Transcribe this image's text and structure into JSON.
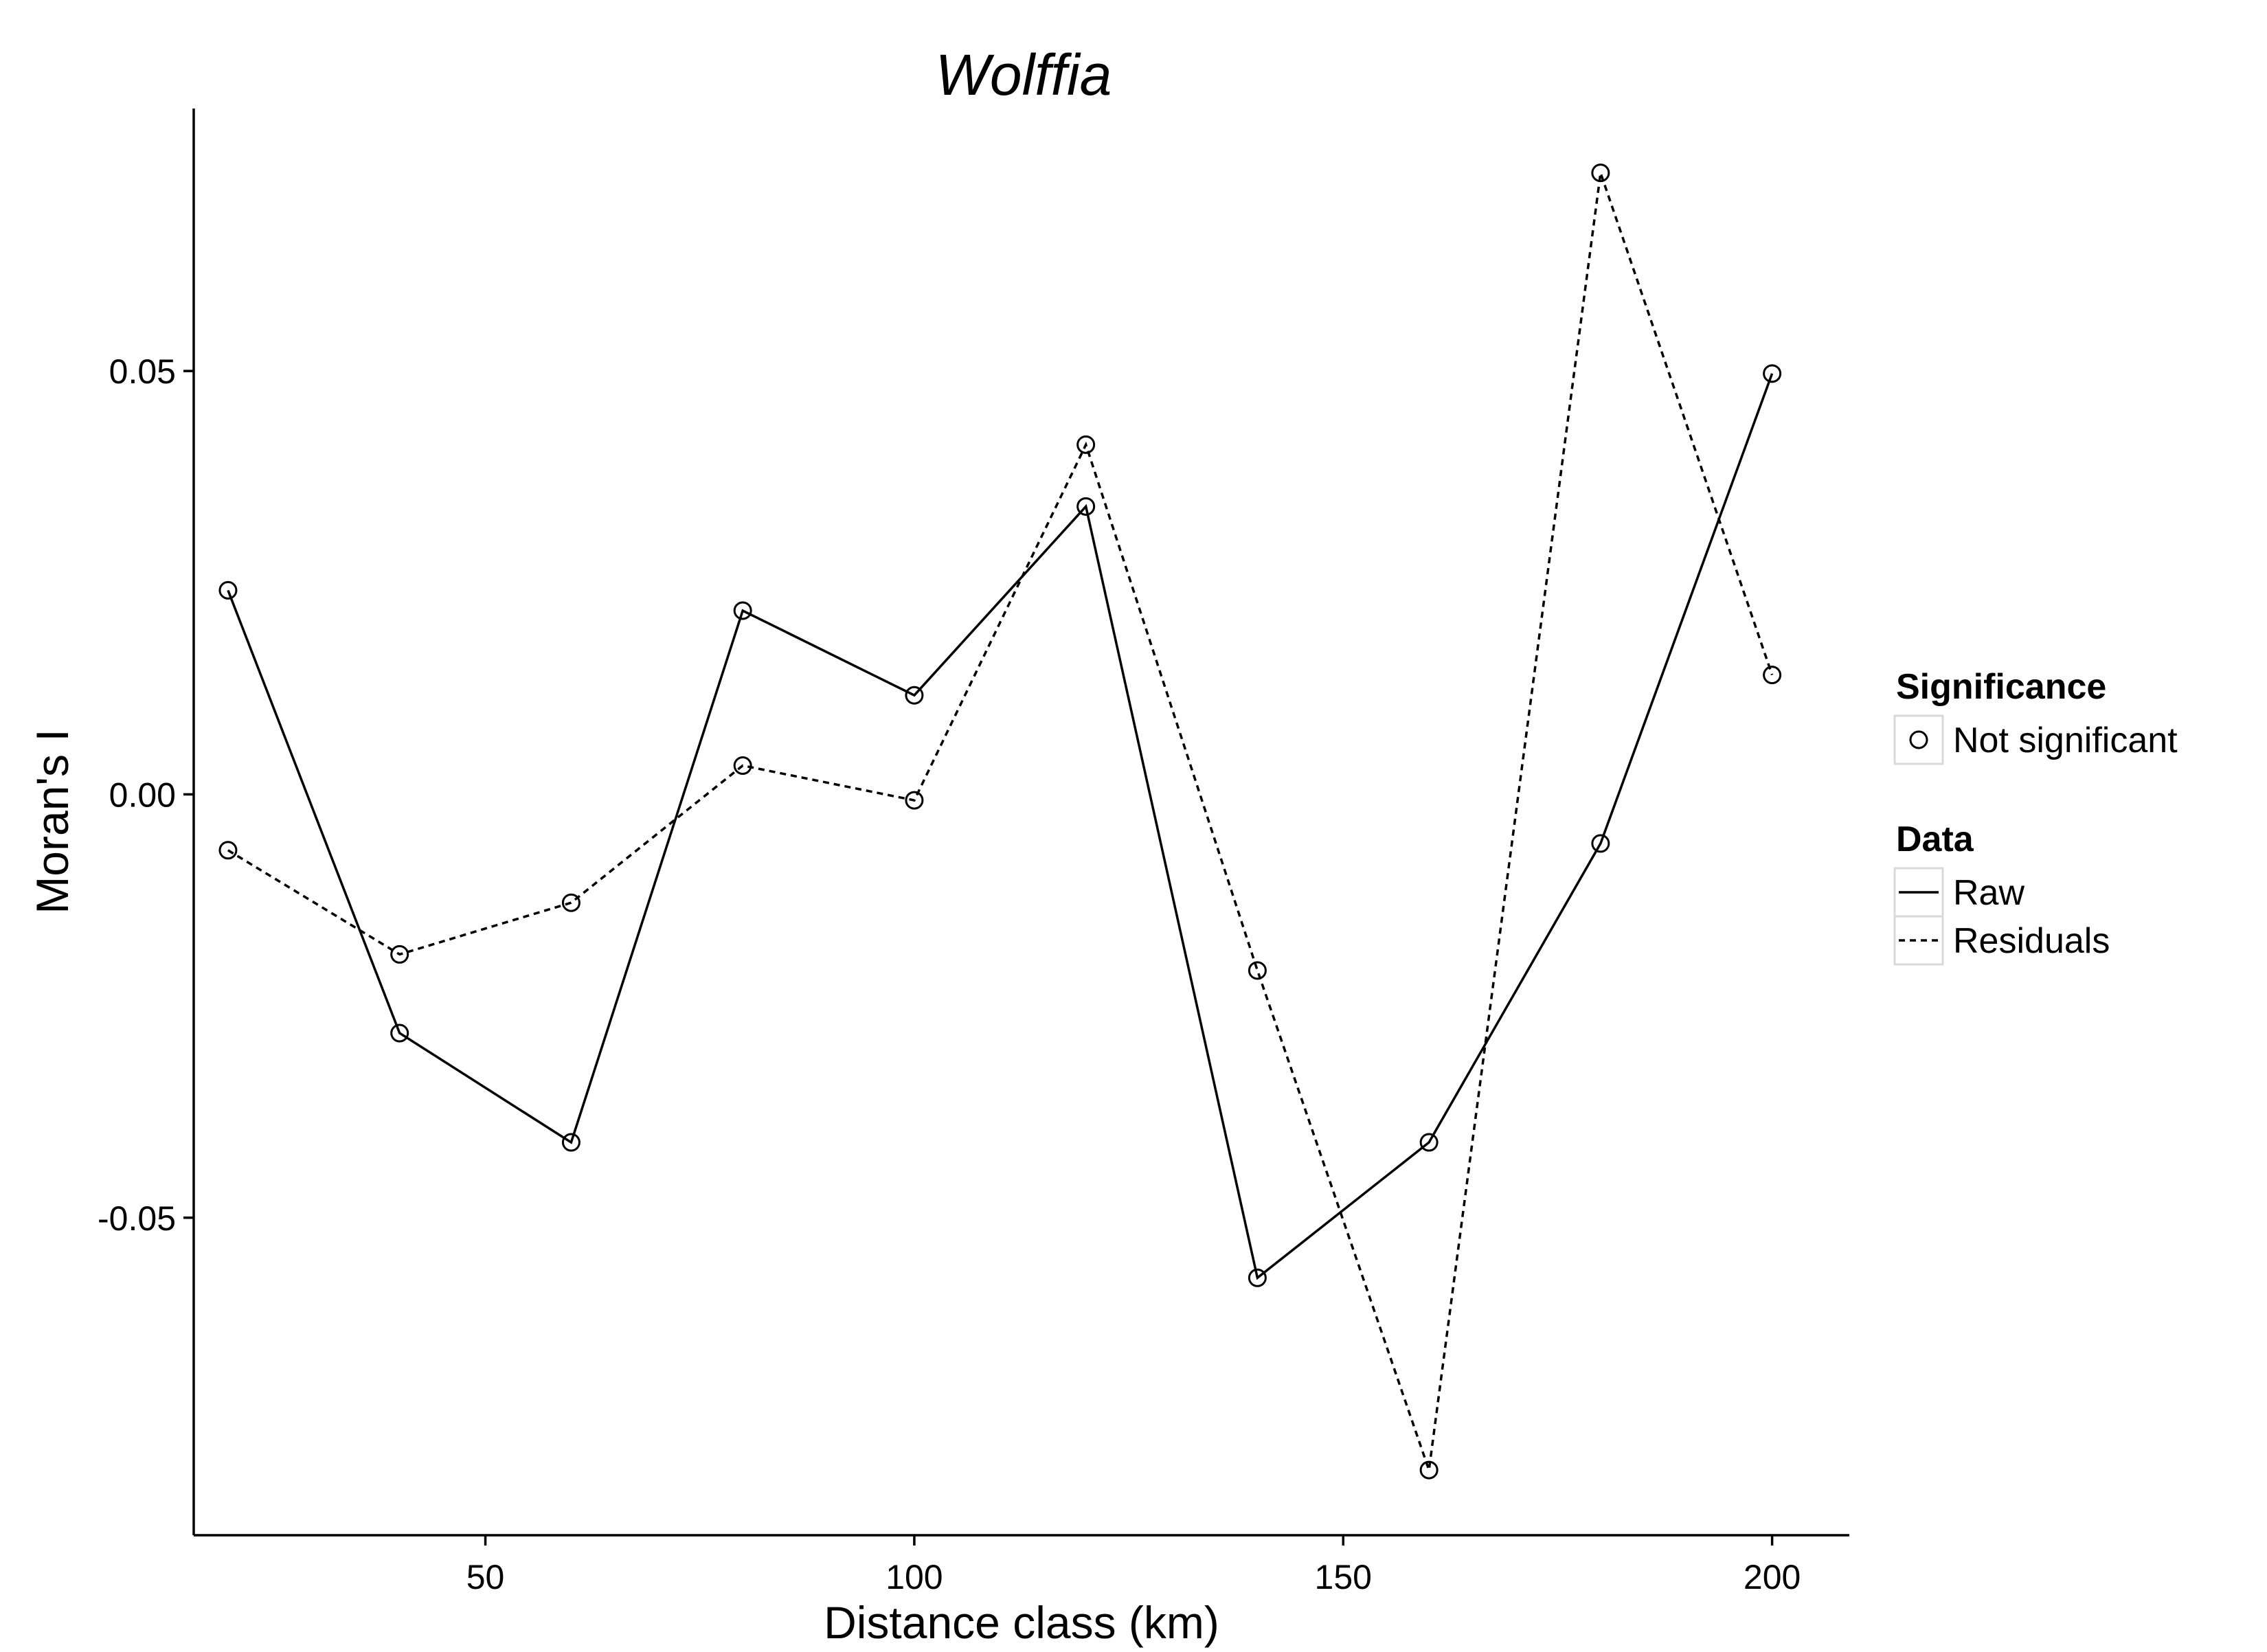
{
  "chart_data": {
    "type": "line",
    "title": "Wolffia",
    "xlabel": "Distance class (km)",
    "ylabel": "Moran's I",
    "xlim": [
      16,
      209
    ],
    "ylim": [
      -0.0875,
      0.081
    ],
    "x_ticks": [
      50,
      100,
      150,
      200
    ],
    "x_tick_labels": [
      "50",
      "100",
      "150",
      "200"
    ],
    "y_ticks": [
      -0.05,
      0.0,
      0.05
    ],
    "y_tick_labels": [
      "-0.05",
      "0.00",
      "0.05"
    ],
    "grid": false,
    "x": [
      20,
      40,
      60,
      80,
      100,
      120,
      140,
      160,
      180,
      200
    ],
    "series": [
      {
        "name": "Raw",
        "line_style": "solid",
        "values": [
          0.0241,
          -0.0282,
          -0.0411,
          0.0217,
          0.0117,
          0.034,
          -0.0571,
          -0.0411,
          -0.0058,
          0.0497
        ]
      },
      {
        "name": "Residuals",
        "line_style": "dashed",
        "values": [
          -0.0066,
          -0.0189,
          -0.0128,
          0.0034,
          -0.0007,
          0.0413,
          -0.0208,
          -0.0798,
          0.0734,
          0.0141
        ]
      }
    ],
    "marker": "open-circle",
    "legend": {
      "placement": "right",
      "groups": [
        {
          "title": "Significance",
          "entries": [
            {
              "label": "Not significant",
              "symbol": "open-circle"
            }
          ]
        },
        {
          "title": "Data",
          "entries": [
            {
              "label": "Raw",
              "symbol": "solid-line"
            },
            {
              "label": "Residuals",
              "symbol": "dashed-line"
            }
          ]
        }
      ]
    },
    "colors": {
      "line": "#000000",
      "background": "#ffffff",
      "legend_key_border": "#d9d9d9"
    }
  }
}
